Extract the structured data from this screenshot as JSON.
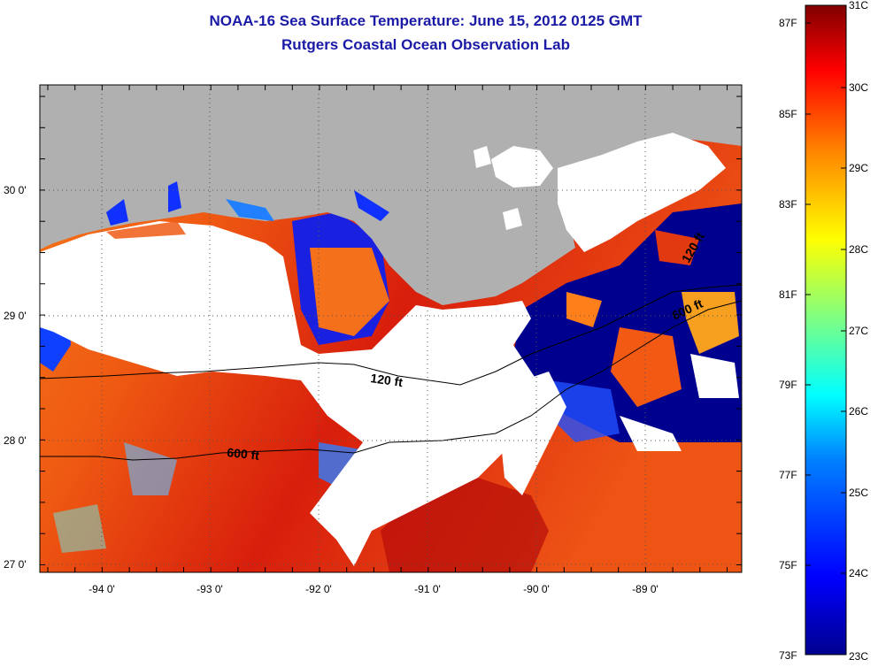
{
  "title": "NOAA-16 Sea Surface Temperature:  June 15, 2012 0125 GMT",
  "subtitle": "Rutgers Coastal Ocean Observation Lab",
  "map": {
    "x_ticks": [
      "-94 0'",
      "-93 0'",
      "-92 0'",
      "-91 0'",
      "-90 0'",
      "-89 0'"
    ],
    "y_ticks": [
      "30 0'",
      "29 0'",
      "28 0'",
      "27 0'"
    ],
    "contours": [
      "120 ft",
      "600 ft",
      "120 ft",
      "600 ft"
    ],
    "land_color": "#b0b0b0",
    "cloud_color": "#ffffff"
  },
  "colorbar": {
    "fahrenheit_labels": [
      "87F",
      "85F",
      "83F",
      "81F",
      "79F",
      "77F",
      "75F",
      "73F"
    ],
    "celsius_labels": [
      "31C",
      "30C",
      "29C",
      "28C",
      "27C",
      "26C",
      "25C",
      "24C",
      "23C"
    ],
    "range_c": [
      23,
      31
    ],
    "colors": [
      "#00008f",
      "#0000ff",
      "#0080ff",
      "#00ffff",
      "#80ff80",
      "#ffff00",
      "#ff8000",
      "#ff0000",
      "#800000"
    ]
  }
}
